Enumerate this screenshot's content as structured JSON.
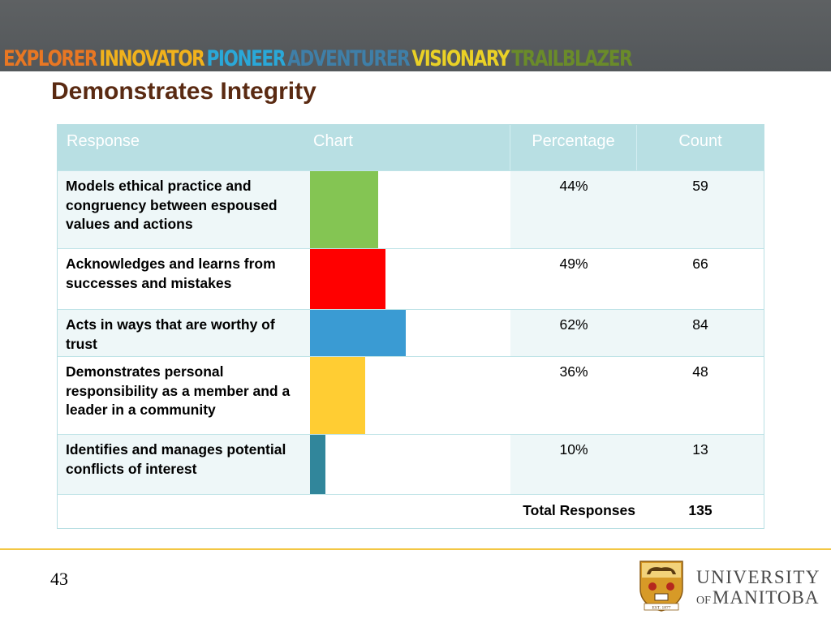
{
  "banner": {
    "words": [
      {
        "text": "EXPLORER",
        "color": "#e87723"
      },
      {
        "text": "INNOVATOR",
        "color": "#f1b21c"
      },
      {
        "text": "PIONEER",
        "color": "#2aa8d8"
      },
      {
        "text": "ADVENTURER",
        "color": "#3f7fa8"
      },
      {
        "text": "VISIONARY",
        "color": "#ead126"
      },
      {
        "text": "TRAILBLAZER",
        "color": "#6a8b2a"
      }
    ]
  },
  "slide": {
    "title": "Demonstrates Integrity",
    "page_number": "43"
  },
  "table": {
    "headers": {
      "response": "Response",
      "chart": "Chart",
      "percentage": "Percentage",
      "count": "Count"
    },
    "rows": [
      {
        "response": "Models ethical practice and congruency between espoused values and actions",
        "percentage": "44%",
        "count": "59"
      },
      {
        "response": "Acknowledges and learns from successes and mistakes",
        "percentage": "49%",
        "count": "66"
      },
      {
        "response": "Acts in ways that are worthy of trust",
        "percentage": "62%",
        "count": "84"
      },
      {
        "response": "Demonstrates personal responsibility as a member and a leader in a community",
        "percentage": "36%",
        "count": "48"
      },
      {
        "response": "Identifies and manages potential conflicts of interest",
        "percentage": "10%",
        "count": "13"
      }
    ],
    "total_label": "Total Responses",
    "total_value": "135"
  },
  "chart_data": {
    "type": "bar",
    "orientation": "horizontal",
    "categories": [
      "Models ethical practice and congruency between espoused values and actions",
      "Acknowledges and learns from successes and mistakes",
      "Acts in ways that are worthy of trust",
      "Demonstrates personal responsibility as a member and a leader in a community",
      "Identifies and manages potential conflicts of interest"
    ],
    "values": [
      44,
      49,
      62,
      36,
      10
    ],
    "counts": [
      59,
      66,
      84,
      48,
      13
    ],
    "colors": [
      "#84c553",
      "#ff0000",
      "#3a9bd3",
      "#ffcd33",
      "#31869b"
    ],
    "xlim": [
      0,
      100
    ],
    "total": 135
  },
  "university": {
    "line1": "UNIVERSITY",
    "of": "OF",
    "line2": "MANITOBA",
    "crest_motto": "EST. 1877"
  }
}
